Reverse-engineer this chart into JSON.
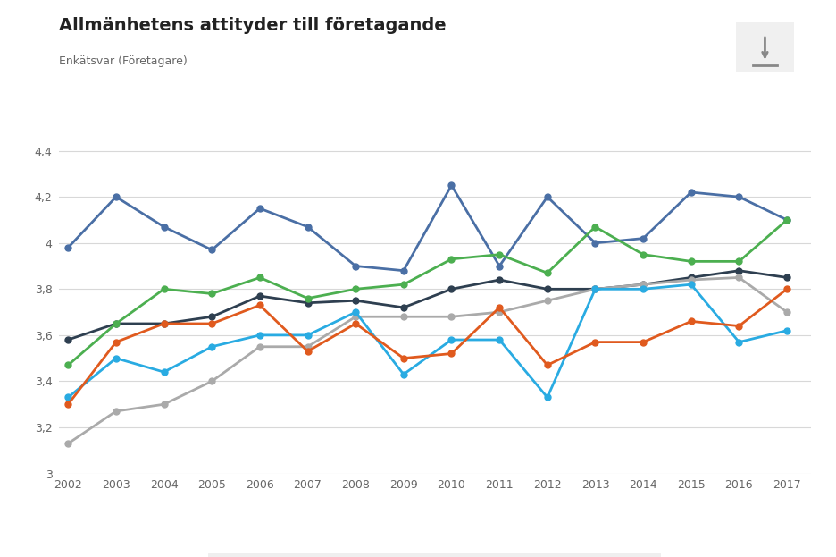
{
  "title": "Allmänhetens attityder till företagande",
  "subtitle": "Enkätsvar (Företagare)",
  "years": [
    2002,
    2003,
    2004,
    2005,
    2006,
    2007,
    2008,
    2009,
    2010,
    2011,
    2012,
    2013,
    2014,
    2015,
    2016,
    2017
  ],
  "series": {
    "SVERIGE": {
      "color": "#2e3f50",
      "values": [
        3.58,
        3.65,
        3.65,
        3.68,
        3.77,
        3.74,
        3.75,
        3.72,
        3.8,
        3.84,
        3.8,
        3.8,
        3.82,
        3.85,
        3.88,
        3.85
      ]
    },
    "BENGTSFORS": {
      "color": "#aaaaaa",
      "values": [
        3.13,
        3.27,
        3.3,
        3.4,
        3.55,
        3.55,
        3.68,
        3.68,
        3.68,
        3.7,
        3.75,
        3.8,
        3.82,
        3.84,
        3.85,
        3.7
      ]
    },
    "DALS-ED": {
      "color": "#4a6fa5",
      "values": [
        3.98,
        4.2,
        4.07,
        3.97,
        4.15,
        4.07,
        3.9,
        3.88,
        4.25,
        3.9,
        4.2,
        4.0,
        4.02,
        4.22,
        4.2,
        4.1
      ]
    },
    "FÄRGELANDA": {
      "color": "#29abe2",
      "values": [
        3.33,
        3.5,
        3.44,
        3.55,
        3.6,
        3.6,
        3.7,
        3.43,
        3.58,
        3.58,
        3.33,
        3.8,
        3.8,
        3.82,
        3.57,
        3.62
      ]
    },
    "MELLERUD": {
      "color": "#4caf50",
      "values": [
        3.47,
        3.65,
        3.8,
        3.78,
        3.85,
        3.76,
        3.8,
        3.82,
        3.93,
        3.95,
        3.87,
        4.07,
        3.95,
        3.92,
        3.92,
        4.1
      ]
    },
    "ÅMÅL": {
      "color": "#e05a1e",
      "values": [
        3.3,
        3.57,
        3.65,
        3.65,
        3.73,
        3.53,
        3.65,
        3.5,
        3.52,
        3.72,
        3.47,
        3.57,
        3.57,
        3.66,
        3.64,
        3.8
      ]
    }
  },
  "ylim": [
    3.0,
    4.45
  ],
  "yticks": [
    3.0,
    3.2,
    3.4,
    3.6,
    3.8,
    4.0,
    4.2,
    4.4
  ],
  "ytick_labels": [
    "3",
    "3,2",
    "3,4",
    "3,6",
    "3,8",
    "4",
    "4,2",
    "4,4"
  ],
  "bg_color": "#ffffff",
  "plot_bg_color": "#ffffff",
  "legend_bg_color": "#efefef",
  "grid_color": "#d8d8d8"
}
